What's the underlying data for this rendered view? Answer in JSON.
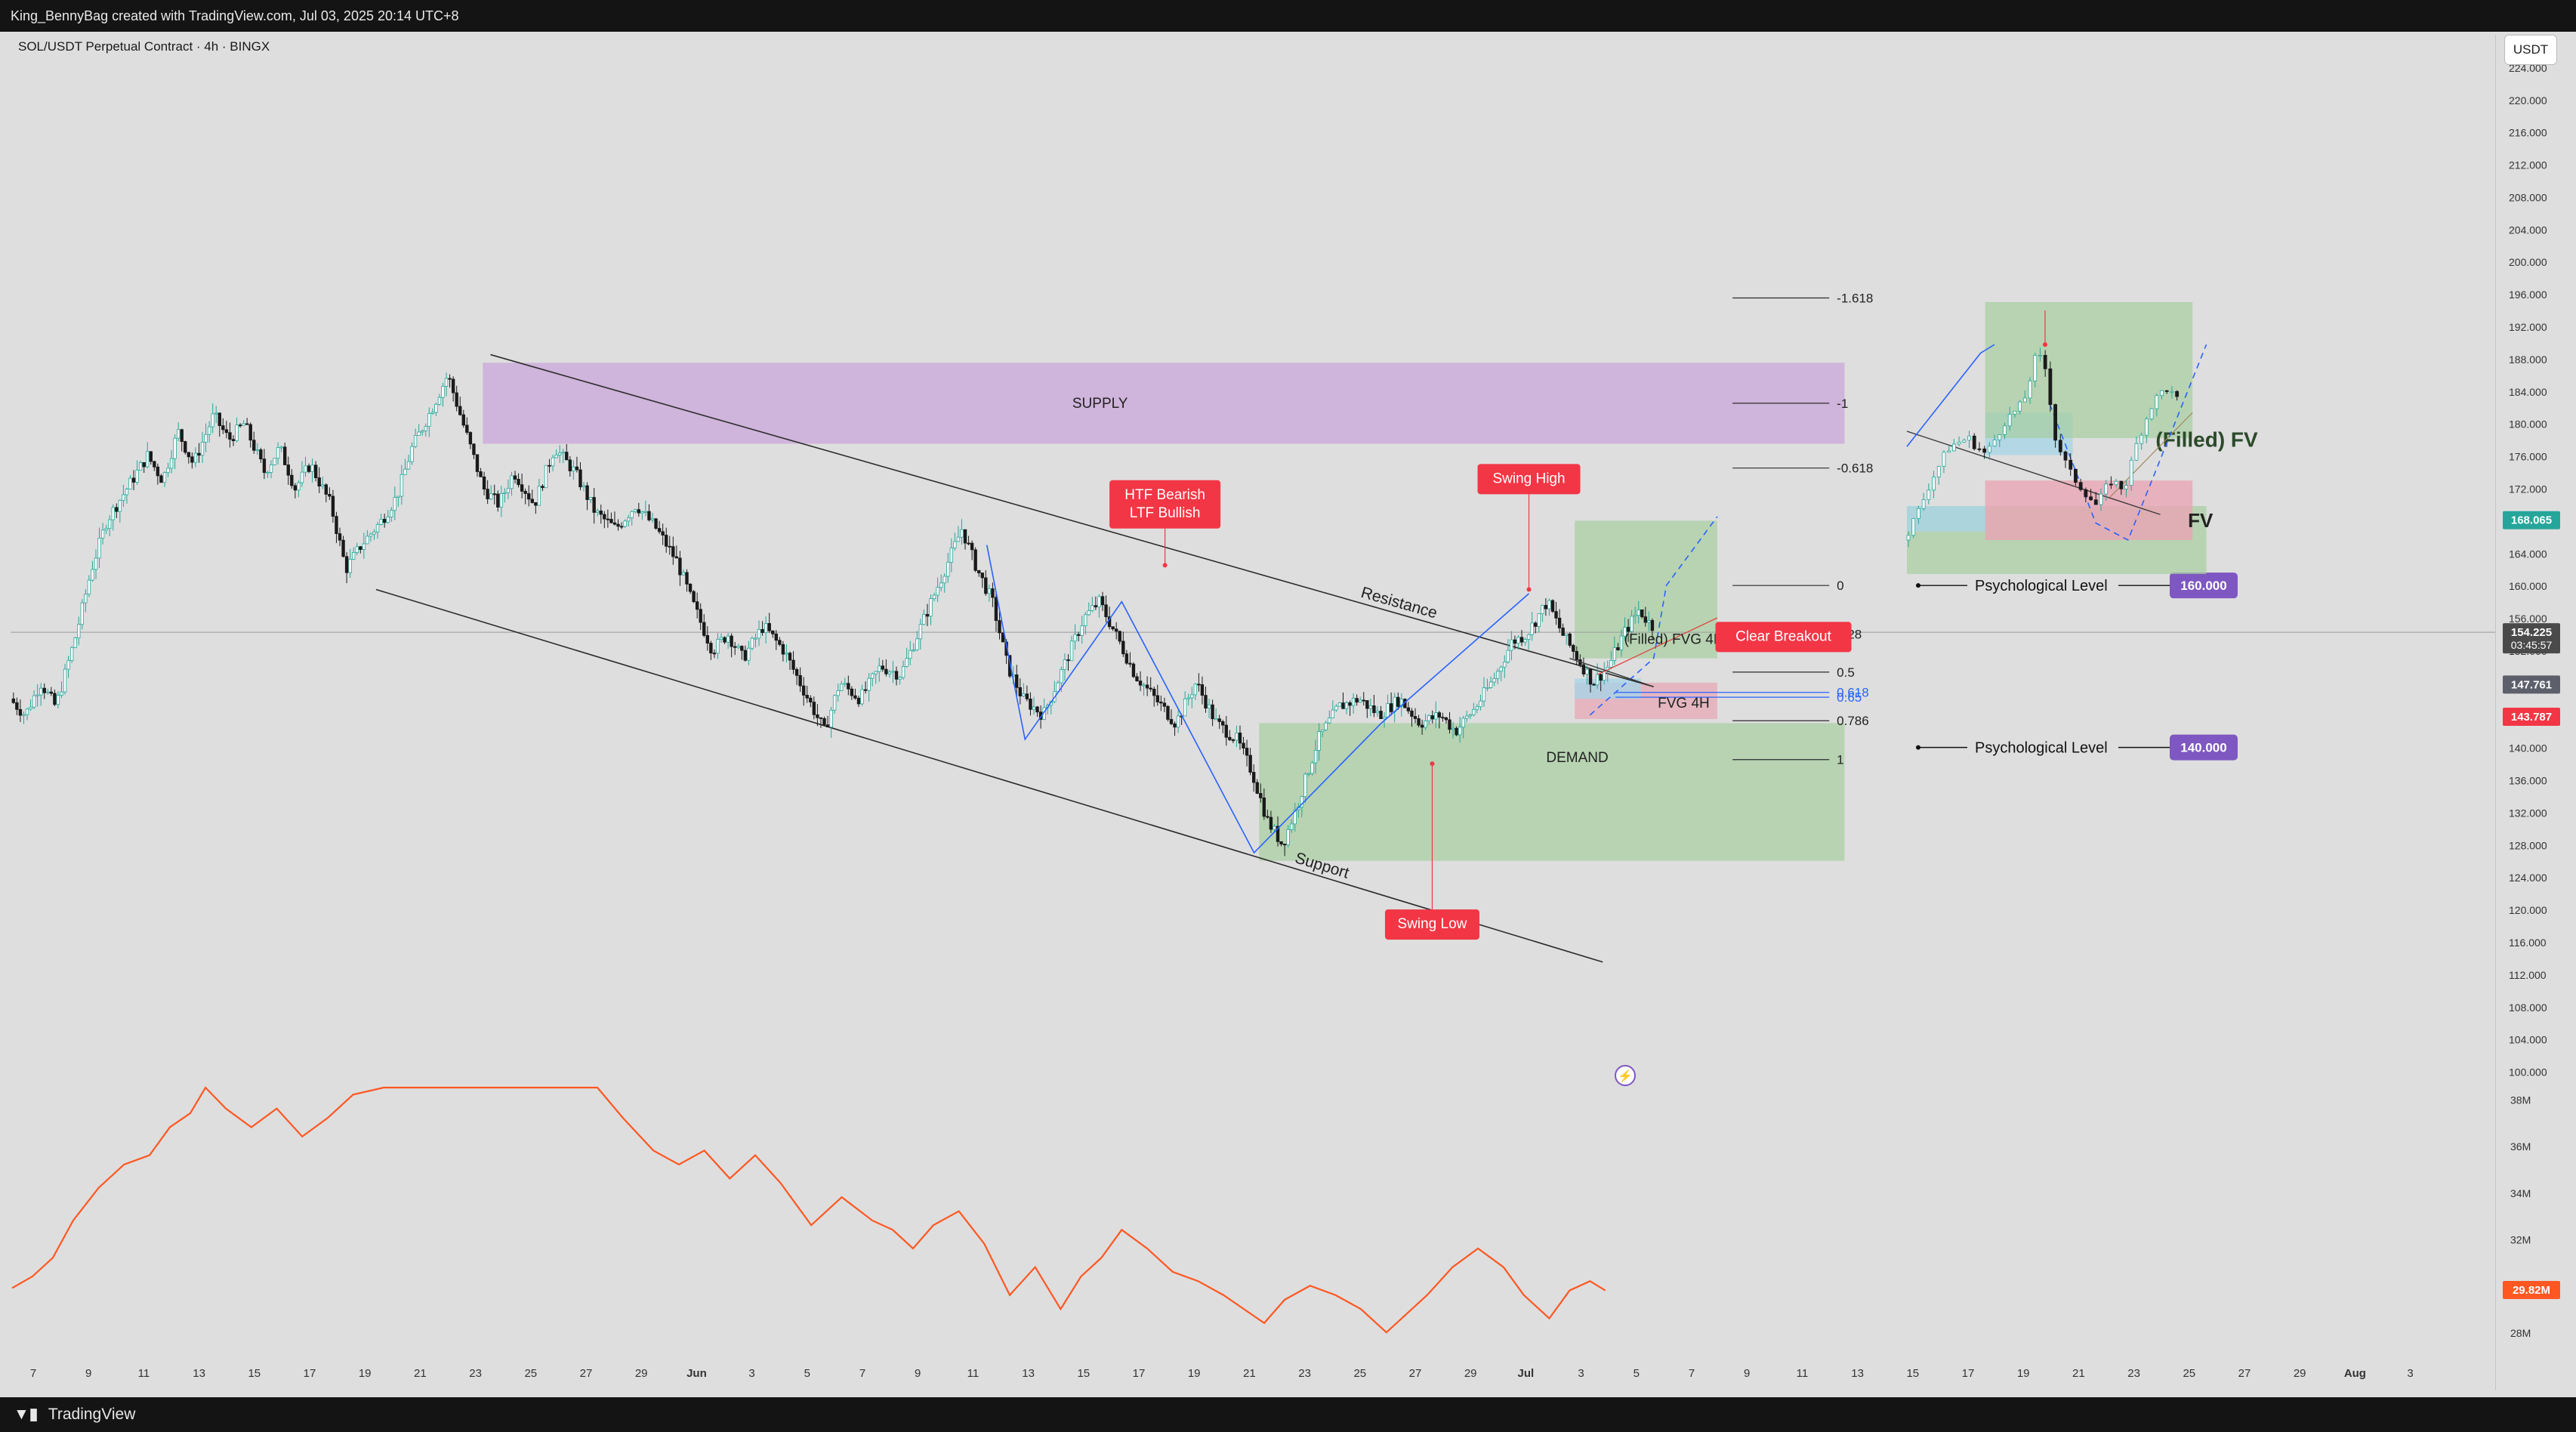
{
  "header": {
    "attribution": "King_BennyBag created with TradingView.com, Jul 03, 2025 20:14 UTC+8",
    "symbol": "SOL/USDT Perpetual Contract · 4h · BINGX",
    "currency": "USDT"
  },
  "footer": {
    "brand": "TradingView",
    "logo": "tradingview-logo-icon"
  },
  "colors": {
    "up": "#26a69a",
    "down": "#1a1a1a",
    "supply": "#c9a6d9",
    "demand": "#a6cf9f",
    "fvg_blue": "#a8d4e6",
    "fvg_red": "#e8a5b4",
    "label_red": "#f23645",
    "label_purple": "#7e57c2",
    "volume_line": "#ff5722",
    "current_price_bg": "#4a4a4a",
    "price_168": "#26a69a",
    "price_147": "#5d606b",
    "price_143": "#f23645",
    "swing_lines": "#2962ff"
  },
  "chart_data": {
    "type": "candlestick",
    "title": "SOL/USDT Perpetual Contract · 4h · BINGX",
    "price_axis": {
      "min": 98,
      "max": 228,
      "ticks": [
        "100.000",
        "104.000",
        "108.000",
        "112.000",
        "116.000",
        "120.000",
        "124.000",
        "128.000",
        "132.000",
        "136.000",
        "140.000",
        "144.000",
        "148.000",
        "152.000",
        "156.000",
        "160.000",
        "164.000",
        "168.000",
        "172.000",
        "176.000",
        "180.000",
        "184.000",
        "188.000",
        "192.000",
        "196.000",
        "200.000",
        "204.000",
        "208.000",
        "212.000",
        "216.000",
        "220.000",
        "224.000"
      ],
      "badges": [
        {
          "value": 168.065,
          "label": "168.065",
          "kind": "price_168"
        },
        {
          "value": 154.225,
          "label": "154.225",
          "sub": "03:45:57",
          "kind": "current_price_bg"
        },
        {
          "value": 147.761,
          "label": "147.761",
          "kind": "price_147"
        },
        {
          "value": 143.787,
          "label": "143.787",
          "kind": "price_143"
        }
      ]
    },
    "volume_axis": {
      "min": 27,
      "max": 38.5,
      "ticks": [
        "28M",
        "30M",
        "32M",
        "34M",
        "36M",
        "38M"
      ],
      "badge": "29.82M"
    },
    "x_ticks": [
      "7",
      "9",
      "11",
      "13",
      "15",
      "17",
      "19",
      "21",
      "23",
      "25",
      "27",
      "29",
      "Jun",
      "3",
      "5",
      "7",
      "9",
      "11",
      "13",
      "15",
      "17",
      "19",
      "21",
      "23",
      "25",
      "27",
      "29",
      "Jul",
      "3",
      "5",
      "7",
      "9",
      "11",
      "13",
      "15",
      "17",
      "19",
      "21",
      "23",
      "25",
      "27",
      "29",
      "Aug",
      "3"
    ],
    "price_path": [
      [
        0,
        146
      ],
      [
        6,
        144
      ],
      [
        12,
        148
      ],
      [
        18,
        145
      ],
      [
        26,
        154
      ],
      [
        32,
        162
      ],
      [
        38,
        168
      ],
      [
        46,
        172
      ],
      [
        54,
        176
      ],
      [
        60,
        173
      ],
      [
        66,
        179
      ],
      [
        72,
        175
      ],
      [
        80,
        181
      ],
      [
        86,
        178
      ],
      [
        92,
        180
      ],
      [
        100,
        174
      ],
      [
        106,
        177
      ],
      [
        112,
        172
      ],
      [
        118,
        175
      ],
      [
        126,
        170
      ],
      [
        132,
        162
      ],
      [
        138,
        165
      ],
      [
        146,
        168
      ],
      [
        152,
        171
      ],
      [
        158,
        177
      ],
      [
        166,
        182
      ],
      [
        172,
        186
      ],
      [
        180,
        178
      ],
      [
        186,
        172
      ],
      [
        192,
        170
      ],
      [
        198,
        174
      ],
      [
        206,
        170
      ],
      [
        214,
        177
      ],
      [
        222,
        174
      ],
      [
        230,
        169
      ],
      [
        238,
        167
      ],
      [
        246,
        170
      ],
      [
        254,
        167
      ],
      [
        262,
        163
      ],
      [
        268,
        158
      ],
      [
        276,
        152
      ],
      [
        282,
        154
      ],
      [
        288,
        151
      ],
      [
        296,
        155
      ],
      [
        304,
        152
      ],
      [
        312,
        147
      ],
      [
        320,
        142
      ],
      [
        326,
        148
      ],
      [
        334,
        146
      ],
      [
        342,
        150
      ],
      [
        350,
        149
      ],
      [
        358,
        155
      ],
      [
        366,
        161
      ],
      [
        374,
        167
      ],
      [
        380,
        162
      ],
      [
        386,
        158
      ],
      [
        392,
        150
      ],
      [
        398,
        146
      ],
      [
        406,
        144
      ],
      [
        414,
        150
      ],
      [
        422,
        156
      ],
      [
        428,
        158
      ],
      [
        436,
        153
      ],
      [
        442,
        149
      ],
      [
        450,
        146
      ],
      [
        458,
        143
      ],
      [
        466,
        148
      ],
      [
        474,
        143
      ],
      [
        482,
        141
      ],
      [
        488,
        137
      ],
      [
        494,
        131
      ],
      [
        500,
        128
      ],
      [
        506,
        133
      ],
      [
        514,
        141
      ],
      [
        522,
        145
      ],
      [
        530,
        146
      ],
      [
        538,
        144
      ],
      [
        546,
        146
      ],
      [
        554,
        143
      ],
      [
        562,
        144
      ],
      [
        568,
        142
      ],
      [
        576,
        145
      ],
      [
        584,
        149
      ],
      [
        590,
        153
      ],
      [
        596,
        154
      ],
      [
        604,
        158
      ],
      [
        610,
        154
      ],
      [
        616,
        151
      ],
      [
        622,
        148
      ],
      [
        628,
        150
      ],
      [
        634,
        154
      ],
      [
        640,
        157
      ],
      [
        645,
        155
      ]
    ],
    "volume_path": [
      [
        0,
        29.9
      ],
      [
        8,
        30.4
      ],
      [
        16,
        31.2
      ],
      [
        24,
        32.8
      ],
      [
        34,
        34.2
      ],
      [
        44,
        35.2
      ],
      [
        54,
        35.6
      ],
      [
        62,
        36.8
      ],
      [
        70,
        37.4
      ],
      [
        76,
        38.6
      ],
      [
        84,
        37.6
      ],
      [
        94,
        36.8
      ],
      [
        104,
        37.6
      ],
      [
        114,
        36.4
      ],
      [
        124,
        37.2
      ],
      [
        134,
        38.2
      ],
      [
        146,
        38.6
      ],
      [
        218,
        38.6
      ],
      [
        230,
        38.6
      ],
      [
        240,
        37.2
      ],
      [
        252,
        35.8
      ],
      [
        262,
        35.2
      ],
      [
        272,
        35.8
      ],
      [
        282,
        34.6
      ],
      [
        292,
        35.6
      ],
      [
        302,
        34.4
      ],
      [
        314,
        32.6
      ],
      [
        326,
        33.8
      ],
      [
        338,
        32.8
      ],
      [
        346,
        32.4
      ],
      [
        354,
        31.6
      ],
      [
        362,
        32.6
      ],
      [
        372,
        33.2
      ],
      [
        382,
        31.8
      ],
      [
        392,
        29.6
      ],
      [
        402,
        30.8
      ],
      [
        412,
        29.0
      ],
      [
        420,
        30.4
      ],
      [
        428,
        31.2
      ],
      [
        436,
        32.4
      ],
      [
        446,
        31.6
      ],
      [
        456,
        30.6
      ],
      [
        466,
        30.2
      ],
      [
        476,
        29.6
      ],
      [
        484,
        29.0
      ],
      [
        492,
        28.4
      ],
      [
        500,
        29.4
      ],
      [
        510,
        30.0
      ],
      [
        520,
        29.6
      ],
      [
        530,
        29.0
      ],
      [
        540,
        28.0
      ],
      [
        548,
        28.8
      ],
      [
        556,
        29.6
      ],
      [
        566,
        30.8
      ],
      [
        576,
        31.6
      ],
      [
        586,
        30.8
      ],
      [
        594,
        29.6
      ],
      [
        604,
        28.6
      ],
      [
        612,
        29.8
      ],
      [
        620,
        30.2
      ],
      [
        626,
        29.8
      ]
    ],
    "zones": [
      {
        "name": "SUPPLY",
        "label": "SUPPLY",
        "type": "supply",
        "x0": 185,
        "x1": 720,
        "y0": 177.5,
        "y1": 187.5
      },
      {
        "name": "DEMAND",
        "label": "DEMAND",
        "type": "demand",
        "x0": 490,
        "x1": 720,
        "y0": 126,
        "y1": 143
      },
      {
        "name": "fvg-filled",
        "label": "(Filled) FVG 4H",
        "type": "demand",
        "x0": 614,
        "x1": 670,
        "y0": 151,
        "y1": 168
      },
      {
        "name": "fvg-4h",
        "label": "FVG 4H",
        "type": "fvg_red",
        "x0": 614,
        "x1": 670,
        "y0": 143.5,
        "y1": 148
      }
    ],
    "trendlines": [
      {
        "name": "resistance",
        "label": "Resistance",
        "p0": [
          188,
          188.5
        ],
        "p1": [
          645,
          147.5
        ]
      },
      {
        "name": "support",
        "label": "Support",
        "p0": [
          143,
          159.5
        ],
        "p1": [
          625,
          113.5
        ]
      }
    ],
    "fib_levels": [
      {
        "ratio": "-1.618",
        "price": 195.5
      },
      {
        "ratio": "-1",
        "price": 182.5
      },
      {
        "ratio": "-0.618",
        "price": 174.5
      },
      {
        "ratio": "0",
        "price": 160
      },
      {
        "ratio": "0.28",
        "price": 154
      },
      {
        "ratio": "0.5",
        "price": 149.3
      },
      {
        "ratio": "0.618",
        "price": 146.8
      },
      {
        "ratio": "0.65",
        "price": 146.2
      },
      {
        "ratio": "0.786",
        "price": 143.3
      },
      {
        "ratio": "1",
        "price": 138.5
      }
    ],
    "callouts": [
      {
        "name": "htf-callout",
        "lines": [
          "HTF Bearish",
          "LTF Bullish"
        ],
        "x": 453,
        "price": 173,
        "target_price": 162.5
      },
      {
        "name": "swing-high",
        "lines": [
          "Swing High"
        ],
        "x": 596,
        "price": 175,
        "target_price": 159.5
      },
      {
        "name": "swing-low",
        "lines": [
          "Swing Low"
        ],
        "x": 558,
        "price": 120,
        "target_price": 138
      },
      {
        "name": "clear-breakout",
        "lines": [
          "Clear Breakout"
        ],
        "x": 696,
        "price": 155.5,
        "target_price": 153
      }
    ],
    "psych_levels": [
      {
        "label": "Psychological Level",
        "value_label": "160.000",
        "price": 160
      },
      {
        "label": "Psychological Level",
        "value_label": "140.000",
        "price": 140
      }
    ],
    "inset": {
      "label_filled": "(Filled) FV",
      "label_fvg": "FV",
      "price_path": [
        [
          0,
          170
        ],
        [
          6,
          173
        ],
        [
          12,
          177
        ],
        [
          20,
          181
        ],
        [
          28,
          182
        ],
        [
          36,
          180
        ],
        [
          44,
          184
        ],
        [
          52,
          186
        ],
        [
          58,
          192
        ],
        [
          62,
          190
        ],
        [
          66,
          182
        ],
        [
          72,
          178
        ],
        [
          78,
          176
        ],
        [
          84,
          174
        ],
        [
          90,
          177
        ],
        [
          96,
          176
        ],
        [
          102,
          182
        ],
        [
          108,
          186
        ],
        [
          114,
          188
        ],
        [
          120,
          186
        ]
      ]
    }
  }
}
